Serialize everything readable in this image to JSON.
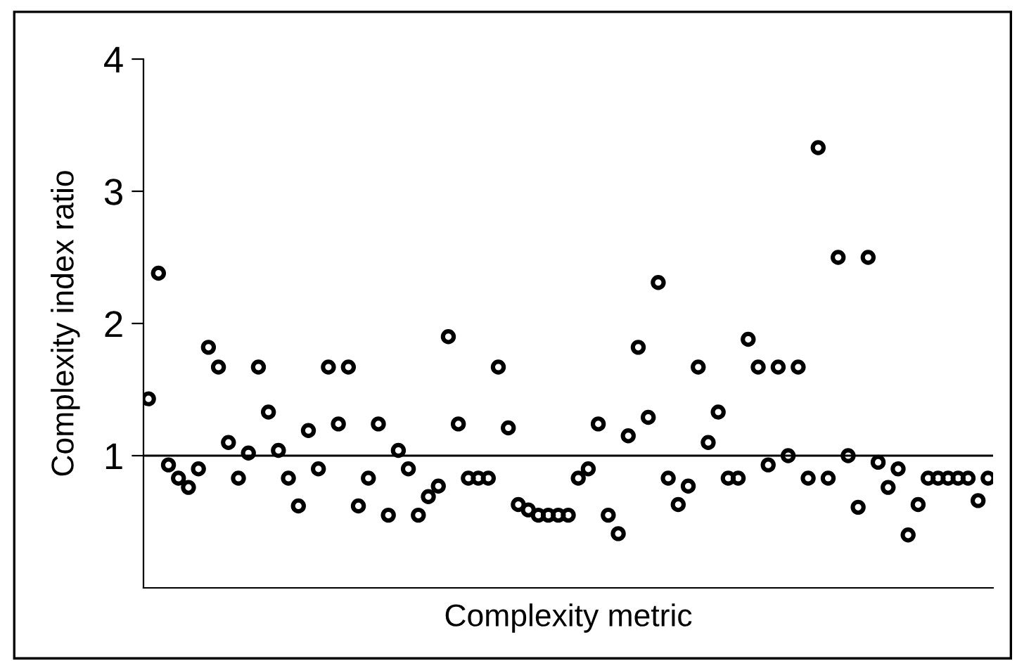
{
  "chart_data": {
    "type": "scatter",
    "xlabel": "Complexity metric",
    "ylabel": "Complexity index ratio",
    "categories": [
      null,
      null,
      null,
      null,
      null,
      null,
      null,
      null,
      null,
      null,
      null,
      null,
      null,
      null,
      null,
      null,
      null,
      null,
      null,
      null,
      null,
      null,
      null,
      null,
      null,
      null,
      null,
      null,
      null,
      null,
      null,
      null,
      null,
      null,
      null,
      null,
      null,
      null,
      null,
      null,
      null,
      null,
      null,
      null,
      null,
      null,
      null,
      null,
      null,
      null,
      null,
      null,
      null,
      null,
      null,
      null,
      null,
      null,
      null,
      null,
      null,
      null,
      null,
      null,
      null,
      null,
      null,
      null,
      null,
      null,
      null,
      null,
      null,
      null,
      null,
      null,
      null,
      null,
      null,
      null,
      null,
      null,
      null,
      null,
      null
    ],
    "series": [
      {
        "color": "#000000",
        "values": [
          1.43,
          2.38,
          0.93,
          0.83,
          0.76,
          0.9,
          1.82,
          1.67,
          1.1,
          0.83,
          1.02,
          1.67,
          1.33,
          1.04,
          0.83,
          0.62,
          1.19,
          0.9,
          1.67,
          1.24,
          1.67,
          0.62,
          0.83,
          1.24,
          0.55,
          1.04,
          0.9,
          0.55,
          0.69,
          0.77,
          1.9,
          1.24,
          0.83,
          0.83,
          0.83,
          1.67,
          1.21,
          0.63,
          0.59,
          0.55,
          0.55,
          0.55,
          0.55,
          0.83,
          0.9,
          1.24,
          0.55,
          0.41,
          1.15,
          1.82,
          1.29,
          2.31,
          0.83,
          0.63,
          0.77,
          1.67,
          1.1,
          1.33,
          0.83,
          0.83,
          1.88,
          1.67,
          0.93,
          1.67,
          1.0,
          1.67,
          0.83,
          3.33,
          0.83,
          2.5,
          1.0,
          0.61,
          2.5,
          0.95,
          0.76,
          0.9,
          0.4,
          0.63,
          0.83,
          0.83,
          0.83,
          0.83,
          0.83,
          0.66,
          0.83
        ]
      }
    ],
    "ylim": [
      0,
      4
    ],
    "yticks": [
      1,
      2,
      3,
      4
    ],
    "ref_lines": [
      {
        "axis": "y",
        "value": 1,
        "color": "#000000"
      }
    ],
    "marker": "circle",
    "grid": false,
    "legend": false,
    "tick_labels": "y"
  }
}
